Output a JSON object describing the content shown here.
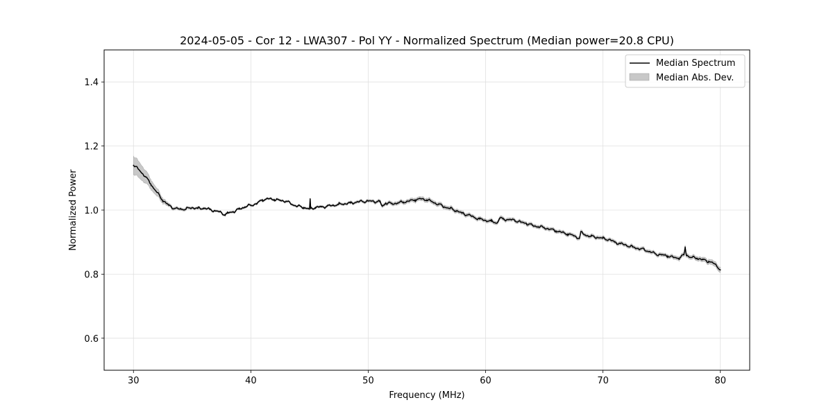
{
  "chart_data": {
    "type": "line",
    "title": "2024-05-05 - Cor 12 - LWA307 - Pol YY - Normalized Spectrum (Median power=20.8 CPU)",
    "xlabel": "Frequency (MHz)",
    "ylabel": "Normalized Power",
    "xlim": [
      27.5,
      82.5
    ],
    "ylim": [
      0.5,
      1.5
    ],
    "xticks": [
      30,
      40,
      50,
      60,
      70,
      80
    ],
    "yticks": [
      0.6,
      0.8,
      1.0,
      1.2,
      1.4
    ],
    "xtick_labels": [
      "30",
      "40",
      "50",
      "60",
      "70",
      "80"
    ],
    "ytick_labels": [
      "0.6",
      "0.8",
      "1.0",
      "1.2",
      "1.4"
    ],
    "grid": true,
    "legend_position": "top-right",
    "series": [
      {
        "name": "Median Spectrum",
        "kind": "line",
        "color": "#000000",
        "x": [
          30.0,
          30.5,
          31.0,
          31.5,
          32.0,
          32.5,
          33.0,
          33.5,
          34.0,
          34.5,
          35.0,
          35.5,
          36.0,
          36.5,
          37.0,
          37.5,
          37.8,
          38.0,
          38.5,
          39.0,
          39.5,
          40.0,
          40.5,
          41.0,
          41.5,
          42.0,
          42.5,
          43.0,
          43.5,
          44.0,
          44.5,
          45.0,
          45.05,
          45.1,
          45.5,
          46.0,
          46.5,
          47.0,
          47.5,
          48.0,
          48.5,
          49.0,
          49.5,
          50.0,
          50.5,
          51.0,
          51.2,
          51.5,
          52.0,
          52.5,
          53.0,
          53.5,
          54.0,
          54.5,
          55.0,
          55.5,
          56.0,
          56.5,
          57.0,
          57.5,
          58.0,
          58.5,
          59.0,
          59.5,
          60.0,
          60.5,
          61.0,
          61.2,
          61.5,
          62.0,
          62.5,
          63.0,
          63.5,
          64.0,
          64.5,
          65.0,
          65.5,
          66.0,
          66.5,
          67.0,
          67.5,
          68.0,
          68.1,
          68.5,
          69.0,
          69.5,
          70.0,
          70.5,
          71.0,
          71.5,
          72.0,
          72.5,
          73.0,
          73.5,
          74.0,
          74.5,
          75.0,
          75.5,
          76.0,
          76.5,
          76.9,
          77.0,
          77.1,
          77.5,
          78.0,
          78.5,
          79.0,
          79.5,
          80.0
        ],
        "y": [
          1.14,
          1.125,
          1.105,
          1.08,
          1.055,
          1.03,
          1.015,
          1.005,
          1.003,
          1.004,
          1.008,
          1.005,
          1.006,
          1.002,
          0.997,
          0.992,
          0.985,
          0.99,
          0.995,
          1.003,
          1.01,
          1.015,
          1.02,
          1.032,
          1.035,
          1.033,
          1.03,
          1.028,
          1.018,
          1.012,
          1.008,
          1.003,
          1.035,
          1.005,
          1.008,
          1.01,
          1.012,
          1.015,
          1.018,
          1.02,
          1.022,
          1.025,
          1.027,
          1.028,
          1.027,
          1.026,
          1.012,
          1.022,
          1.02,
          1.022,
          1.025,
          1.028,
          1.032,
          1.035,
          1.032,
          1.025,
          1.018,
          1.01,
          1.005,
          0.998,
          0.99,
          0.985,
          0.978,
          0.972,
          0.968,
          0.965,
          0.96,
          0.975,
          0.972,
          0.97,
          0.968,
          0.962,
          0.958,
          0.952,
          0.948,
          0.945,
          0.94,
          0.935,
          0.93,
          0.925,
          0.92,
          0.912,
          0.93,
          0.922,
          0.918,
          0.915,
          0.912,
          0.908,
          0.9,
          0.895,
          0.89,
          0.885,
          0.88,
          0.877,
          0.87,
          0.863,
          0.86,
          0.857,
          0.852,
          0.85,
          0.86,
          0.885,
          0.86,
          0.852,
          0.85,
          0.845,
          0.84,
          0.832,
          0.815
        ]
      },
      {
        "name": "Median Abs. Dev.",
        "kind": "band",
        "color": "#c8c8c8",
        "x": [
          30.0,
          30.5,
          31.0,
          31.5,
          32.0,
          32.5,
          33.0,
          33.5,
          34.0,
          36.0,
          38.0,
          40.0,
          45.0,
          50.0,
          54.5,
          55.0,
          60.0,
          65.0,
          70.0,
          75.0,
          77.0,
          78.0,
          79.0,
          80.0
        ],
        "half_width": [
          0.028,
          0.025,
          0.02,
          0.015,
          0.012,
          0.008,
          0.005,
          0.004,
          0.004,
          0.003,
          0.003,
          0.003,
          0.003,
          0.004,
          0.006,
          0.006,
          0.005,
          0.005,
          0.005,
          0.005,
          0.006,
          0.006,
          0.007,
          0.008
        ]
      }
    ]
  }
}
